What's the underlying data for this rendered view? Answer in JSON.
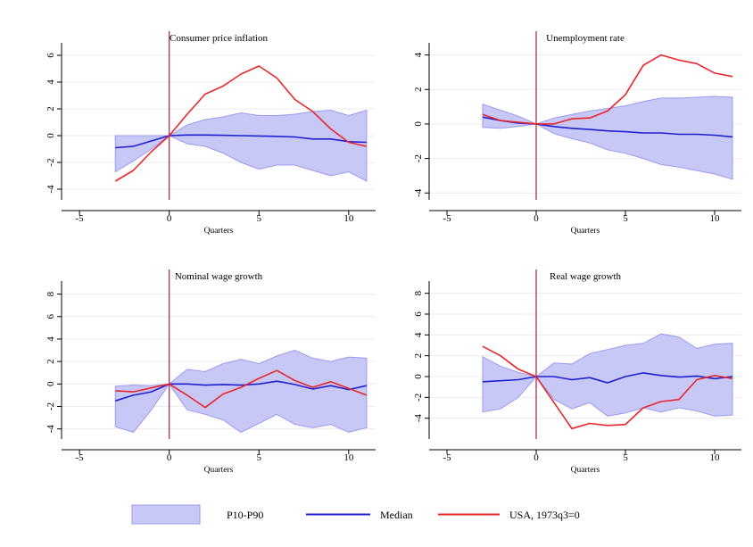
{
  "colors": {
    "band_fill": "#c8c8f7",
    "band_stroke": "#9a9af0",
    "median": "#1f1fd0",
    "usa": "#e8262b",
    "vline": "#a0224a",
    "grid": "#ececec",
    "axis": "#000000"
  },
  "legend": {
    "band_label": "P10-P90",
    "median_label": "Median",
    "usa_label": "USA, 1973q3=0",
    "placement": "bottom"
  },
  "chart_data": [
    {
      "type": "line",
      "title": "Consumer price inflation",
      "xlabel": "Quarters",
      "ylabel": "",
      "xlim": [
        -6,
        11.5
      ],
      "ylim": [
        -4.8,
        6.8
      ],
      "xticks": [
        -5,
        0,
        5,
        10
      ],
      "yticks": [
        -4,
        -2,
        0,
        2,
        4,
        6
      ],
      "vline_x": 0,
      "grid": true,
      "x": [
        -3,
        -2,
        -1,
        0,
        1,
        2,
        3,
        4,
        5,
        6,
        7,
        8,
        9,
        10,
        11
      ],
      "series": [
        {
          "name": "P10-P90",
          "kind": "band",
          "lower": [
            -2.7,
            -1.9,
            -1.0,
            0.0,
            -0.6,
            -0.8,
            -1.3,
            -2.0,
            -2.5,
            -2.2,
            -2.2,
            -2.6,
            -3.0,
            -2.7,
            -3.4
          ],
          "upper": [
            0.0,
            0.0,
            0.0,
            0.0,
            0.8,
            1.2,
            1.4,
            1.7,
            1.5,
            1.5,
            1.6,
            1.8,
            1.9,
            1.5,
            1.9
          ]
        },
        {
          "name": "Median",
          "kind": "line",
          "values": [
            -0.9,
            -0.8,
            -0.4,
            0.0,
            0.05,
            0.05,
            0.03,
            0.0,
            -0.03,
            -0.05,
            -0.1,
            -0.25,
            -0.25,
            -0.45,
            -0.5
          ]
        },
        {
          "name": "USA, 1973q3=0",
          "kind": "line",
          "x": [
            -3,
            -2,
            -1,
            0,
            1,
            2,
            3,
            4,
            5,
            6,
            7,
            8,
            9,
            10,
            11
          ],
          "values": [
            -3.4,
            -2.6,
            -1.2,
            0.0,
            1.6,
            3.1,
            3.7,
            4.6,
            5.2,
            4.3,
            2.7,
            1.8,
            0.5,
            -0.5,
            -0.8
          ]
        }
      ]
    },
    {
      "type": "line",
      "title": "Unemployment rate",
      "xlabel": "Quarters",
      "ylabel": "",
      "xlim": [
        -6,
        11.5
      ],
      "ylim": [
        -4.4,
        4.6
      ],
      "xticks": [
        -5,
        0,
        5,
        10
      ],
      "yticks": [
        -4,
        -2,
        0,
        2,
        4
      ],
      "vline_x": 0,
      "grid": true,
      "x": [
        -3,
        -2,
        -1,
        0,
        1,
        2,
        3,
        4,
        5,
        6,
        7,
        8,
        9,
        10,
        11
      ],
      "series": [
        {
          "name": "P10-P90",
          "kind": "band",
          "lower": [
            -0.2,
            -0.25,
            -0.15,
            0.0,
            -0.55,
            -0.85,
            -1.1,
            -1.5,
            -1.7,
            -2.0,
            -2.35,
            -2.5,
            -2.7,
            -2.9,
            -3.2
          ],
          "upper": [
            1.15,
            0.8,
            0.45,
            0.0,
            0.35,
            0.55,
            0.75,
            0.9,
            1.05,
            1.3,
            1.5,
            1.5,
            1.55,
            1.6,
            1.55
          ]
        },
        {
          "name": "Median",
          "kind": "line",
          "values": [
            0.4,
            0.2,
            0.05,
            0.0,
            -0.15,
            -0.25,
            -0.32,
            -0.4,
            -0.45,
            -0.52,
            -0.52,
            -0.6,
            -0.6,
            -0.65,
            -0.75
          ]
        },
        {
          "name": "USA, 1973q3=0",
          "kind": "line",
          "x": [
            -3,
            -2,
            -1,
            0,
            1,
            1.5,
            2,
            3,
            4,
            5,
            6,
            7,
            8,
            9,
            10,
            11
          ],
          "values": [
            0.55,
            0.2,
            0.1,
            0.0,
            0.0,
            0.15,
            0.3,
            0.35,
            0.75,
            1.7,
            3.4,
            4.0,
            3.7,
            3.5,
            2.95,
            2.75
          ]
        }
      ]
    },
    {
      "type": "line",
      "title": "Nominal wage growth",
      "xlabel": "Quarters",
      "ylabel": "",
      "xlim": [
        -6,
        11.5
      ],
      "ylim": [
        -4.9,
        9.0
      ],
      "xticks": [
        -5,
        0,
        5,
        10
      ],
      "yticks": [
        -4,
        -2,
        0,
        2,
        4,
        6,
        8
      ],
      "vline_x": 0,
      "grid": true,
      "x": [
        -3,
        -2,
        -1,
        0,
        1,
        2,
        3,
        4,
        5,
        6,
        7,
        8,
        9,
        10,
        11
      ],
      "series": [
        {
          "name": "P10-P90",
          "kind": "band",
          "lower": [
            -3.8,
            -4.3,
            -2.3,
            0.0,
            -2.3,
            -2.7,
            -3.2,
            -4.3,
            -3.5,
            -2.7,
            -3.6,
            -3.9,
            -3.6,
            -4.3,
            -3.9
          ],
          "upper": [
            -0.2,
            -0.1,
            -0.15,
            0.0,
            1.3,
            1.1,
            1.8,
            2.2,
            1.8,
            2.5,
            3.0,
            2.3,
            2.0,
            2.4,
            2.3
          ]
        },
        {
          "name": "Median",
          "kind": "line",
          "values": [
            -1.5,
            -1.0,
            -0.7,
            0.0,
            0.0,
            -0.1,
            -0.05,
            -0.1,
            0.0,
            0.25,
            -0.05,
            -0.45,
            -0.15,
            -0.5,
            -0.15
          ]
        },
        {
          "name": "USA, 1973q3=0",
          "kind": "line",
          "x": [
            -3,
            -2,
            -1,
            0,
            1,
            2,
            3,
            4,
            5,
            6,
            7,
            8,
            9,
            10,
            11
          ],
          "values": [
            -0.6,
            -0.7,
            -0.35,
            0.0,
            -1.0,
            -2.1,
            -0.9,
            -0.3,
            0.5,
            1.2,
            0.3,
            -0.3,
            0.2,
            -0.4,
            -1.0
          ]
        }
      ]
    },
    {
      "type": "line",
      "title": "Real wage growth",
      "xlabel": "Quarters",
      "ylabel": "",
      "xlim": [
        -6,
        11.5
      ],
      "ylim": [
        -6.0,
        9.0
      ],
      "xticks": [
        -5,
        0,
        5,
        10
      ],
      "yticks": [
        -4,
        -2,
        0,
        2,
        4,
        6,
        8
      ],
      "vline_x": 0,
      "grid": true,
      "x": [
        -3,
        -2,
        -1,
        0,
        1,
        2,
        3,
        4,
        5,
        6,
        7,
        8,
        9,
        10,
        11
      ],
      "series": [
        {
          "name": "P10-P90",
          "kind": "band",
          "lower": [
            -3.4,
            -3.1,
            -2.0,
            0.0,
            -2.2,
            -3.1,
            -2.5,
            -3.8,
            -3.5,
            -3.0,
            -3.4,
            -3.0,
            -3.3,
            -3.8,
            -3.7
          ],
          "upper": [
            1.9,
            1.0,
            0.4,
            0.0,
            1.3,
            1.2,
            2.2,
            2.6,
            3.0,
            3.2,
            4.1,
            3.8,
            2.7,
            3.1,
            3.2
          ]
        },
        {
          "name": "Median",
          "kind": "line",
          "values": [
            -0.5,
            -0.4,
            -0.3,
            0.0,
            0.0,
            -0.3,
            -0.1,
            -0.6,
            0.0,
            0.35,
            0.1,
            -0.05,
            0.05,
            -0.2,
            0.0
          ]
        },
        {
          "name": "USA, 1973q3=0",
          "kind": "line",
          "x": [
            -3,
            -2,
            -1,
            0,
            1,
            2,
            3,
            4,
            5,
            6,
            7,
            8,
            9,
            10,
            11
          ],
          "values": [
            2.9,
            2.0,
            0.7,
            0.0,
            -2.5,
            -5.0,
            -4.5,
            -4.7,
            -4.6,
            -3.0,
            -2.4,
            -2.2,
            -0.3,
            0.1,
            -0.2
          ]
        }
      ]
    }
  ]
}
